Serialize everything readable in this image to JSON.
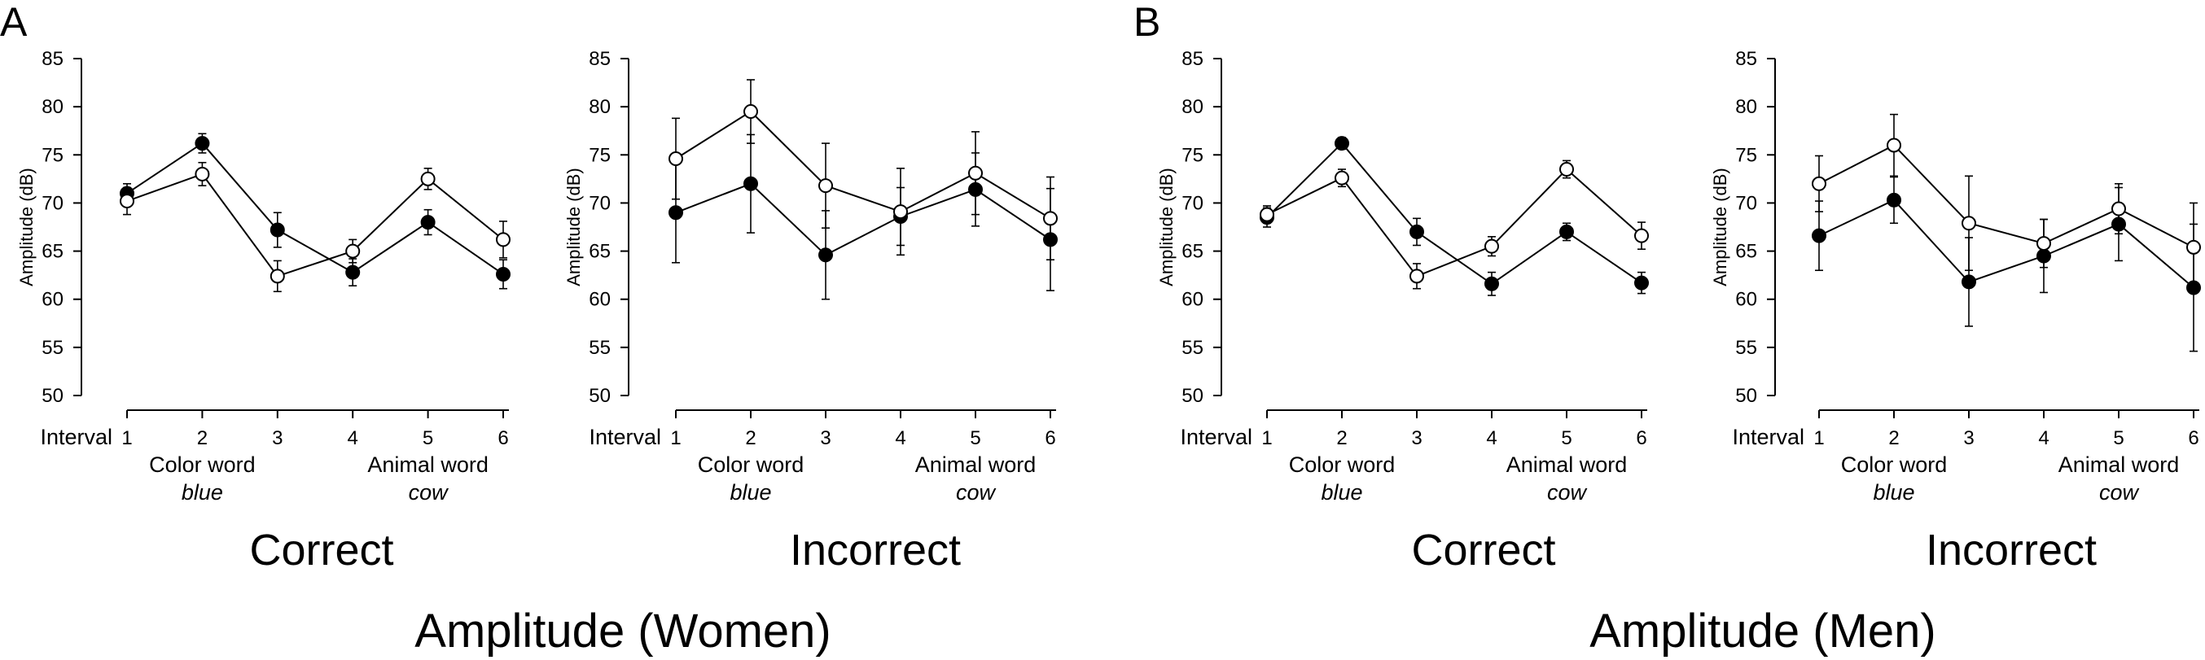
{
  "panels": [
    {
      "letter": "A",
      "title": "Amplitude (Women)"
    },
    {
      "letter": "B",
      "title": "Amplitude (Men)"
    }
  ],
  "axis_text": {
    "ylabel": "Amplitude (dB)",
    "xlabel": "Interval",
    "color_word": "Color word",
    "color_example": "blue",
    "animal_word": "Animal word",
    "animal_example": "cow"
  },
  "chart_data": [
    {
      "type": "line",
      "panel": "A",
      "subtitle": "Correct",
      "x": [
        1,
        2,
        3,
        4,
        5,
        6
      ],
      "ylim": [
        50,
        85
      ],
      "yticks": [
        50,
        55,
        60,
        65,
        70,
        75,
        80,
        85
      ],
      "series": [
        {
          "marker": "filled",
          "values": [
            71.0,
            76.2,
            67.2,
            62.8,
            68.0,
            62.6
          ],
          "error": [
            1.0,
            1.0,
            1.8,
            1.4,
            1.3,
            1.5
          ]
        },
        {
          "marker": "open",
          "values": [
            70.2,
            73.0,
            62.4,
            65.0,
            72.5,
            66.2
          ],
          "error": [
            1.4,
            1.2,
            1.6,
            1.2,
            1.1,
            1.9
          ]
        }
      ]
    },
    {
      "type": "line",
      "panel": "A",
      "subtitle": "Incorrect",
      "x": [
        1,
        2,
        3,
        4,
        5,
        6
      ],
      "ylim": [
        50,
        85
      ],
      "yticks": [
        50,
        55,
        60,
        65,
        70,
        75,
        80,
        85
      ],
      "series": [
        {
          "marker": "filled",
          "values": [
            69.0,
            72.0,
            64.6,
            68.6,
            71.4,
            66.2
          ],
          "error": [
            5.2,
            5.1,
            4.6,
            3.0,
            3.8,
            5.3
          ]
        },
        {
          "marker": "open",
          "values": [
            74.6,
            79.5,
            71.8,
            69.1,
            73.1,
            68.4
          ],
          "error": [
            4.2,
            3.3,
            4.4,
            4.5,
            4.3,
            4.3
          ]
        }
      ]
    },
    {
      "type": "line",
      "panel": "B",
      "subtitle": "Correct",
      "x": [
        1,
        2,
        3,
        4,
        5,
        6
      ],
      "ylim": [
        50,
        85
      ],
      "yticks": [
        50,
        55,
        60,
        65,
        70,
        75,
        80,
        85
      ],
      "series": [
        {
          "marker": "filled",
          "values": [
            68.5,
            76.2,
            67.0,
            61.6,
            67.0,
            61.7
          ],
          "error": [
            1.0,
            0.6,
            1.4,
            1.2,
            0.9,
            1.1
          ]
        },
        {
          "marker": "open",
          "values": [
            68.8,
            72.6,
            62.4,
            65.5,
            73.5,
            66.6
          ],
          "error": [
            0.9,
            0.9,
            1.3,
            1.0,
            0.9,
            1.4
          ]
        }
      ]
    },
    {
      "type": "line",
      "panel": "B",
      "subtitle": "Incorrect",
      "x": [
        1,
        2,
        3,
        4,
        5,
        6
      ],
      "ylim": [
        50,
        85
      ],
      "yticks": [
        50,
        55,
        60,
        65,
        70,
        75,
        80,
        85
      ],
      "series": [
        {
          "marker": "filled",
          "values": [
            66.6,
            70.3,
            61.8,
            64.5,
            67.8,
            61.2
          ],
          "error": [
            3.6,
            2.4,
            4.6,
            3.8,
            3.8,
            6.6
          ]
        },
        {
          "marker": "open",
          "values": [
            72.0,
            76.0,
            67.9,
            65.8,
            69.4,
            65.4
          ],
          "error": [
            2.9,
            3.2,
            4.9,
            2.5,
            2.6,
            4.6
          ]
        }
      ]
    }
  ]
}
